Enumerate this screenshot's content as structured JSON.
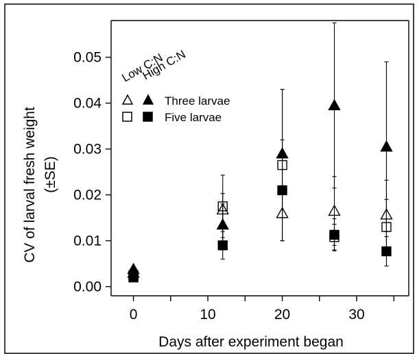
{
  "chart_data": {
    "type": "scatter",
    "xlabel": "Days after experiment began",
    "ylabel": "CV of larval fresh weight",
    "ylabel_sub": "(±SE)",
    "xlim": [
      -3,
      37
    ],
    "ylim": [
      -0.002,
      0.058
    ],
    "x_ticks": [
      0,
      10,
      20,
      30
    ],
    "x_minor_ticks": [
      5,
      15,
      25,
      35
    ],
    "y_ticks": [
      "0.00",
      "0.01",
      "0.02",
      "0.03",
      "0.04",
      "0.05"
    ],
    "grid": false,
    "legend": {
      "placement": "top-left",
      "headers": [
        "Low C:N",
        "High C:N"
      ],
      "rows": [
        "Three larvae",
        "Five larvae"
      ]
    },
    "series": [
      {
        "key": "low_three",
        "marker": "triangle",
        "filled": false,
        "points": [
          {
            "x": 0,
            "y": 0.003,
            "se": 0.0005
          },
          {
            "x": 12,
            "y": 0.0168,
            "se": 0.0035
          },
          {
            "x": 20,
            "y": 0.016,
            "se": 0.006
          },
          {
            "x": 27,
            "y": 0.0165,
            "se": 0.0075
          },
          {
            "x": 34,
            "y": 0.0157,
            "se": 0.0075
          }
        ]
      },
      {
        "key": "high_three",
        "marker": "triangle",
        "filled": true,
        "points": [
          {
            "x": 0,
            "y": 0.0038,
            "se": 0.0005
          },
          {
            "x": 12,
            "y": 0.0135,
            "se": 0.0045
          },
          {
            "x": 20,
            "y": 0.029,
            "se": 0.014
          },
          {
            "x": 27,
            "y": 0.0395,
            "se": 0.018
          },
          {
            "x": 34,
            "y": 0.0305,
            "se": 0.0185
          }
        ]
      },
      {
        "key": "low_five",
        "marker": "square",
        "filled": false,
        "points": [
          {
            "x": 0,
            "y": 0.0025,
            "se": 0.0004
          },
          {
            "x": 12,
            "y": 0.0175,
            "se": 0.0068
          },
          {
            "x": 20,
            "y": 0.0265,
            "se": 0.0165
          },
          {
            "x": 27,
            "y": 0.0108,
            "se": 0.0028
          },
          {
            "x": 34,
            "y": 0.013,
            "se": 0.006
          }
        ]
      },
      {
        "key": "high_five",
        "marker": "square",
        "filled": true,
        "points": [
          {
            "x": 0,
            "y": 0.002,
            "se": 0.0004
          },
          {
            "x": 12,
            "y": 0.009,
            "se": 0.003
          },
          {
            "x": 20,
            "y": 0.021,
            "se": 0.011
          },
          {
            "x": 27,
            "y": 0.0113,
            "se": 0.0035
          },
          {
            "x": 34,
            "y": 0.0077,
            "se": 0.0032
          }
        ]
      }
    ]
  }
}
